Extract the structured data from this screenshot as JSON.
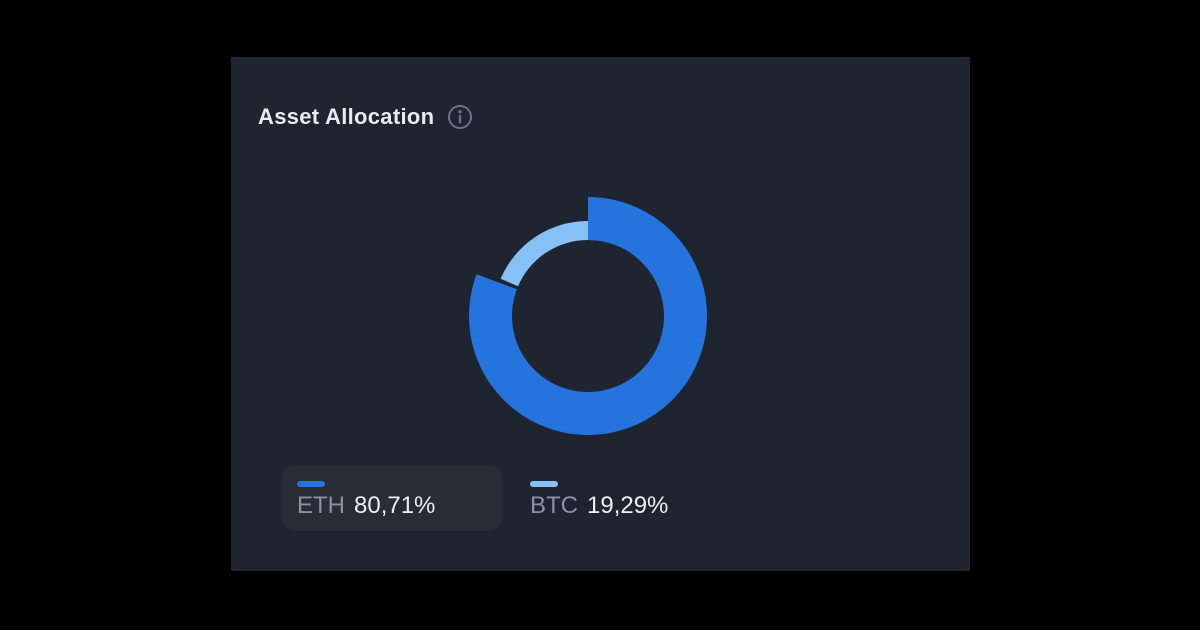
{
  "page": {
    "background": "#000000"
  },
  "card": {
    "title": "Asset Allocation",
    "background": "#1F2530"
  },
  "colors": {
    "page_bg": "#000000",
    "card_bg": "#1F2530",
    "legend_box_bg": "#272C36",
    "title_text": "#E9EBEF",
    "label_text": "#8A92A0",
    "value_text": "#ECEEF2",
    "info_icon": "#6B7480",
    "eth_blue": "#2573DC",
    "btc_light_blue": "#85C0F6"
  },
  "chart_data": {
    "type": "pie",
    "variant": "donut",
    "title": "Asset Allocation",
    "categories": [
      "ETH",
      "BTC"
    ],
    "values": [
      80.71,
      19.29
    ],
    "unit": "%",
    "colors": [
      "#2573DC",
      "#85C0F6"
    ],
    "selected": "ETH",
    "start_angle_deg": 0,
    "clockwise": true,
    "legend_position": "bottom"
  },
  "legend": {
    "items": [
      {
        "name": "ETH",
        "value_label": "80,71%",
        "color": "#2573DC",
        "highlighted": true
      },
      {
        "name": "BTC",
        "value_label": "19,29%",
        "color": "#85C0F6",
        "highlighted": false
      }
    ]
  }
}
